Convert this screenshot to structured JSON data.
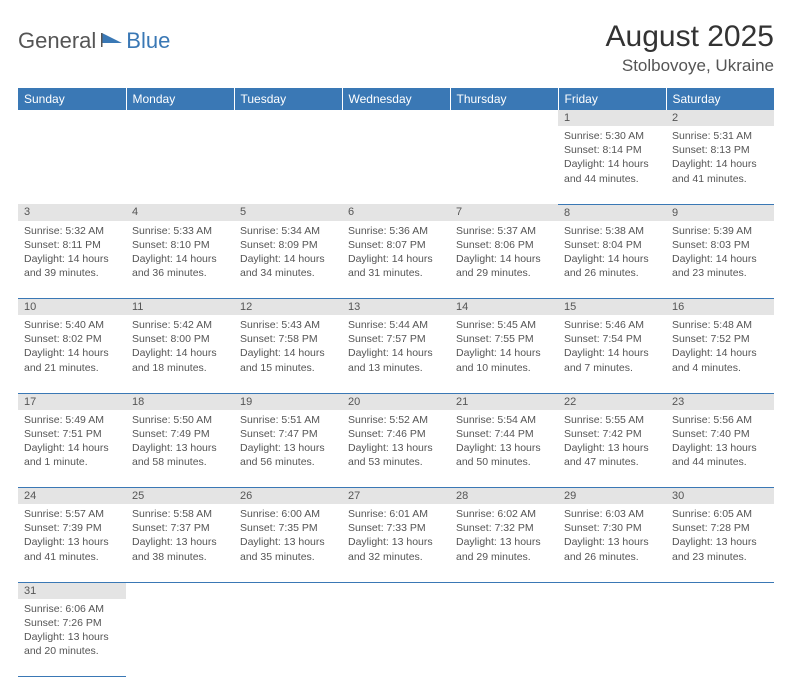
{
  "logo": {
    "part1": "General",
    "part2": "Blue"
  },
  "title": "August 2025",
  "location": "Stolbovoye, Ukraine",
  "colors": {
    "header_bg": "#3a78b5",
    "header_text": "#ffffff",
    "daynum_bg": "#e4e4e4",
    "cell_border": "#3a78b5",
    "text": "#555555",
    "logo_gray": "#555555",
    "logo_blue": "#3a78b5"
  },
  "weekdays": [
    "Sunday",
    "Monday",
    "Tuesday",
    "Wednesday",
    "Thursday",
    "Friday",
    "Saturday"
  ],
  "weeks": [
    [
      null,
      null,
      null,
      null,
      null,
      {
        "n": "1",
        "sunrise": "5:30 AM",
        "sunset": "8:14 PM",
        "daylight": "14 hours and 44 minutes."
      },
      {
        "n": "2",
        "sunrise": "5:31 AM",
        "sunset": "8:13 PM",
        "daylight": "14 hours and 41 minutes."
      }
    ],
    [
      {
        "n": "3",
        "sunrise": "5:32 AM",
        "sunset": "8:11 PM",
        "daylight": "14 hours and 39 minutes."
      },
      {
        "n": "4",
        "sunrise": "5:33 AM",
        "sunset": "8:10 PM",
        "daylight": "14 hours and 36 minutes."
      },
      {
        "n": "5",
        "sunrise": "5:34 AM",
        "sunset": "8:09 PM",
        "daylight": "14 hours and 34 minutes."
      },
      {
        "n": "6",
        "sunrise": "5:36 AM",
        "sunset": "8:07 PM",
        "daylight": "14 hours and 31 minutes."
      },
      {
        "n": "7",
        "sunrise": "5:37 AM",
        "sunset": "8:06 PM",
        "daylight": "14 hours and 29 minutes."
      },
      {
        "n": "8",
        "sunrise": "5:38 AM",
        "sunset": "8:04 PM",
        "daylight": "14 hours and 26 minutes."
      },
      {
        "n": "9",
        "sunrise": "5:39 AM",
        "sunset": "8:03 PM",
        "daylight": "14 hours and 23 minutes."
      }
    ],
    [
      {
        "n": "10",
        "sunrise": "5:40 AM",
        "sunset": "8:02 PM",
        "daylight": "14 hours and 21 minutes."
      },
      {
        "n": "11",
        "sunrise": "5:42 AM",
        "sunset": "8:00 PM",
        "daylight": "14 hours and 18 minutes."
      },
      {
        "n": "12",
        "sunrise": "5:43 AM",
        "sunset": "7:58 PM",
        "daylight": "14 hours and 15 minutes."
      },
      {
        "n": "13",
        "sunrise": "5:44 AM",
        "sunset": "7:57 PM",
        "daylight": "14 hours and 13 minutes."
      },
      {
        "n": "14",
        "sunrise": "5:45 AM",
        "sunset": "7:55 PM",
        "daylight": "14 hours and 10 minutes."
      },
      {
        "n": "15",
        "sunrise": "5:46 AM",
        "sunset": "7:54 PM",
        "daylight": "14 hours and 7 minutes."
      },
      {
        "n": "16",
        "sunrise": "5:48 AM",
        "sunset": "7:52 PM",
        "daylight": "14 hours and 4 minutes."
      }
    ],
    [
      {
        "n": "17",
        "sunrise": "5:49 AM",
        "sunset": "7:51 PM",
        "daylight": "14 hours and 1 minute."
      },
      {
        "n": "18",
        "sunrise": "5:50 AM",
        "sunset": "7:49 PM",
        "daylight": "13 hours and 58 minutes."
      },
      {
        "n": "19",
        "sunrise": "5:51 AM",
        "sunset": "7:47 PM",
        "daylight": "13 hours and 56 minutes."
      },
      {
        "n": "20",
        "sunrise": "5:52 AM",
        "sunset": "7:46 PM",
        "daylight": "13 hours and 53 minutes."
      },
      {
        "n": "21",
        "sunrise": "5:54 AM",
        "sunset": "7:44 PM",
        "daylight": "13 hours and 50 minutes."
      },
      {
        "n": "22",
        "sunrise": "5:55 AM",
        "sunset": "7:42 PM",
        "daylight": "13 hours and 47 minutes."
      },
      {
        "n": "23",
        "sunrise": "5:56 AM",
        "sunset": "7:40 PM",
        "daylight": "13 hours and 44 minutes."
      }
    ],
    [
      {
        "n": "24",
        "sunrise": "5:57 AM",
        "sunset": "7:39 PM",
        "daylight": "13 hours and 41 minutes."
      },
      {
        "n": "25",
        "sunrise": "5:58 AM",
        "sunset": "7:37 PM",
        "daylight": "13 hours and 38 minutes."
      },
      {
        "n": "26",
        "sunrise": "6:00 AM",
        "sunset": "7:35 PM",
        "daylight": "13 hours and 35 minutes."
      },
      {
        "n": "27",
        "sunrise": "6:01 AM",
        "sunset": "7:33 PM",
        "daylight": "13 hours and 32 minutes."
      },
      {
        "n": "28",
        "sunrise": "6:02 AM",
        "sunset": "7:32 PM",
        "daylight": "13 hours and 29 minutes."
      },
      {
        "n": "29",
        "sunrise": "6:03 AM",
        "sunset": "7:30 PM",
        "daylight": "13 hours and 26 minutes."
      },
      {
        "n": "30",
        "sunrise": "6:05 AM",
        "sunset": "7:28 PM",
        "daylight": "13 hours and 23 minutes."
      }
    ],
    [
      {
        "n": "31",
        "sunrise": "6:06 AM",
        "sunset": "7:26 PM",
        "daylight": "13 hours and 20 minutes."
      },
      null,
      null,
      null,
      null,
      null,
      null
    ]
  ],
  "labels": {
    "sunrise": "Sunrise:",
    "sunset": "Sunset:",
    "daylight": "Daylight:"
  }
}
